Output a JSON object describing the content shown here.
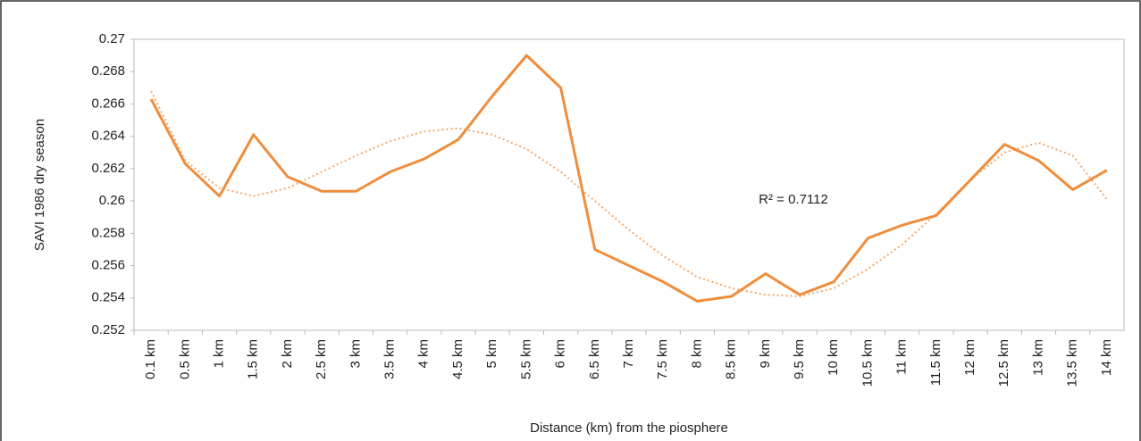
{
  "chart_data": {
    "type": "line",
    "x_label": "Distance (km) from the piosphere",
    "y_label": "SAVI 1986 dry season",
    "categories": [
      "0.1 km",
      "0.5 km",
      "1 km",
      "1.5 km",
      "2 km",
      "2.5 km",
      "3 km",
      "3.5 km",
      "4 km",
      "4.5 km",
      "5 km",
      "5.5 km",
      "6 km",
      "6.5 km",
      "7 km",
      "7.5 km",
      "8 km",
      "8.5 km",
      "9 km",
      "9.5 km",
      "10 km",
      "10.5 km",
      "11 km",
      "11.5 km",
      "12 km",
      "12.5 km",
      "13 km",
      "13.5 km",
      "14 km"
    ],
    "values": [
      0.2663,
      0.2623,
      0.2603,
      0.2641,
      0.2615,
      0.2606,
      0.2606,
      0.2618,
      0.2626,
      0.2638,
      0.2665,
      0.269,
      0.267,
      0.257,
      0.256,
      0.255,
      0.2538,
      0.2541,
      0.2555,
      0.2542,
      0.255,
      0.2577,
      0.2585,
      0.2591,
      0.2613,
      0.2635,
      0.2625,
      0.2607,
      0.2619
    ],
    "color": "#ef8d3c",
    "trendline": {
      "values": [
        0.2668,
        0.2625,
        0.2608,
        0.2603,
        0.2608,
        0.2618,
        0.2628,
        0.2637,
        0.2643,
        0.2645,
        0.2641,
        0.2632,
        0.2618,
        0.26,
        0.2582,
        0.2566,
        0.2553,
        0.2546,
        0.2542,
        0.2541,
        0.2546,
        0.2558,
        0.2573,
        0.2592,
        0.2613,
        0.263,
        0.2636,
        0.2628,
        0.2601
      ],
      "color": "#f2a86a",
      "annotation": "R² = 0.7112"
    },
    "ylim": [
      0.252,
      0.27
    ],
    "yticks": [
      0.252,
      0.254,
      0.256,
      0.258,
      0.26,
      0.262,
      0.264,
      0.266,
      0.268,
      0.27
    ]
  }
}
